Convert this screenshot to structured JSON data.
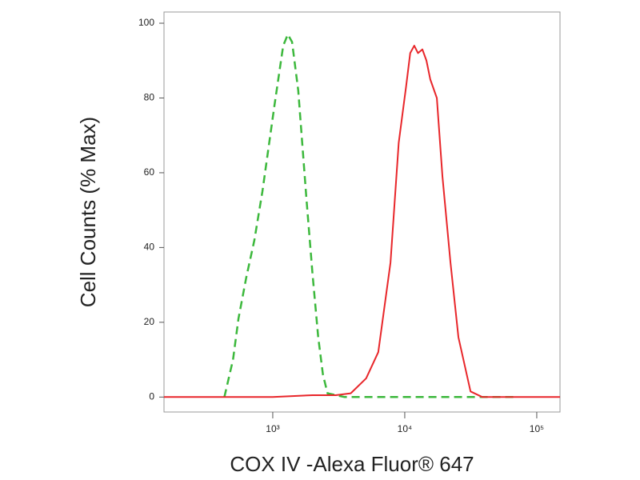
{
  "chart_data": {
    "type": "line",
    "x_label": "COX IV  -Alexa Fluor® 647",
    "y_label": "Cell Counts (% Max)",
    "xscale": "log",
    "xlim": [
      150,
      150000
    ],
    "xticks": [
      {
        "value": 1000,
        "label": "10³"
      },
      {
        "value": 10000,
        "label": "10⁴"
      },
      {
        "value": 100000,
        "label": "10⁵"
      }
    ],
    "ylim": [
      -4,
      103
    ],
    "yticks": [
      0,
      20,
      40,
      60,
      80,
      100
    ],
    "grid": false,
    "series": [
      {
        "color": "#3cb83c",
        "style": "dashed",
        "x": [
          430,
          500,
          550,
          630,
          726,
          835,
          1030,
          1200,
          1300,
          1400,
          1560,
          1800,
          2000,
          2210,
          2400,
          2600,
          3500,
          5000,
          10000,
          20000,
          40000,
          70000
        ],
        "values": [
          0,
          10,
          21,
          32,
          42,
          55,
          78,
          94,
          97,
          95,
          82,
          53,
          33,
          16,
          6,
          1,
          0,
          0,
          0,
          0,
          0,
          0
        ]
      },
      {
        "color": "#e8262a",
        "style": "solid",
        "x": [
          150,
          300,
          1000,
          2000,
          3000,
          3900,
          5100,
          6300,
          7800,
          9000,
          10230,
          11000,
          11800,
          12600,
          13600,
          14600,
          15600,
          17500,
          19300,
          22200,
          25500,
          31500,
          38700,
          60000,
          150000
        ],
        "values": [
          0,
          0,
          0,
          0.5,
          0.5,
          1,
          5,
          12,
          36,
          68,
          83,
          92,
          94,
          92,
          93,
          90,
          85,
          80,
          59,
          36,
          16,
          1.5,
          0,
          0,
          0
        ]
      }
    ]
  }
}
